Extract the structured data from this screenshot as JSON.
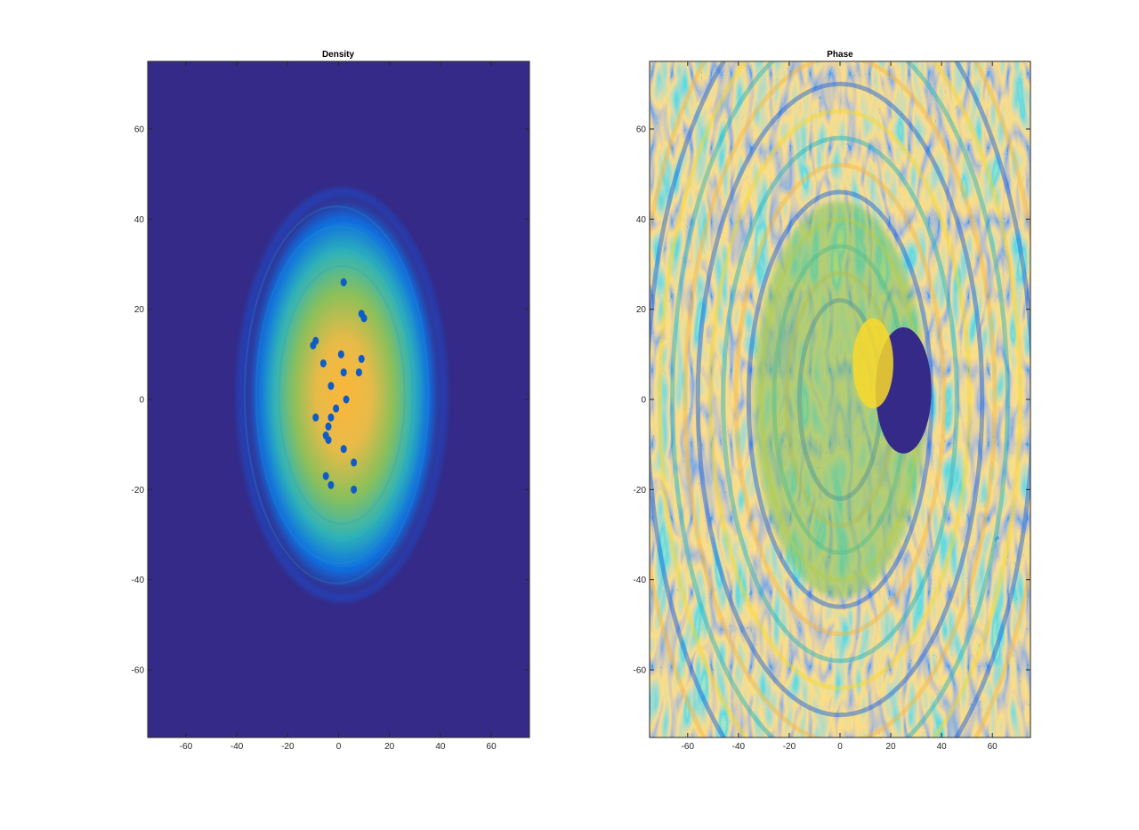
{
  "colors": {
    "parula_dark": "#352a87",
    "parula_blue": "#0f5cdd",
    "parula_cyan": "#1ab2c2",
    "parula_green": "#7fc25e",
    "parula_orange": "#fbb63a",
    "parula_yellow": "#f9fb0e",
    "axis": "#262626"
  },
  "chart_data": [
    {
      "type": "heatmap",
      "title": "Density",
      "xlabel": "",
      "ylabel": "",
      "xlim": [
        -75,
        75
      ],
      "ylim": [
        -75,
        75
      ],
      "xticks": [
        -60,
        -40,
        -20,
        0,
        20,
        40,
        60
      ],
      "yticks": [
        -60,
        -40,
        -20,
        0,
        20,
        40,
        60
      ],
      "xtick_labels": [
        "-60",
        "-40",
        "-20",
        "0",
        "20",
        "40",
        "60"
      ],
      "ytick_labels": [
        "-60",
        "-40",
        "-20",
        "0",
        "20",
        "40",
        "60"
      ],
      "colormap": "parula",
      "grid": false,
      "cloud": {
        "center": [
          2,
          1
        ],
        "radius_x": 38,
        "radius_y": 44,
        "peak_density": 1.0
      },
      "vortices": [
        [
          2,
          26
        ],
        [
          9,
          19
        ],
        [
          10,
          18
        ],
        [
          -9,
          13
        ],
        [
          -10,
          12
        ],
        [
          1,
          10
        ],
        [
          -6,
          8
        ],
        [
          9,
          9
        ],
        [
          2,
          6
        ],
        [
          8,
          6
        ],
        [
          -3,
          3
        ],
        [
          3,
          0
        ],
        [
          -1,
          -2
        ],
        [
          -3,
          -4
        ],
        [
          -9,
          -4
        ],
        [
          -4,
          -6
        ],
        [
          -5,
          -8
        ],
        [
          -4,
          -9
        ],
        [
          2,
          -11
        ],
        [
          6,
          -14
        ],
        [
          -5,
          -17
        ],
        [
          -3,
          -19
        ],
        [
          6,
          -20
        ]
      ]
    },
    {
      "type": "heatmap",
      "title": "Phase",
      "xlabel": "",
      "ylabel": "",
      "xlim": [
        -75,
        75
      ],
      "ylim": [
        -75,
        75
      ],
      "xticks": [
        -60,
        -40,
        -20,
        0,
        20,
        40,
        60
      ],
      "yticks": [
        -60,
        -40,
        -20,
        0,
        20,
        40,
        60
      ],
      "xtick_labels": [
        "-60",
        "-40",
        "-20",
        "0",
        "20",
        "40",
        "60"
      ],
      "ytick_labels": [
        "-60",
        "-40",
        "-20",
        "0",
        "20",
        "40",
        "60"
      ],
      "colormap": "parula",
      "grid": false,
      "phase_range": [
        -3.14,
        3.14
      ],
      "dark_region_center": [
        25,
        2
      ]
    }
  ]
}
